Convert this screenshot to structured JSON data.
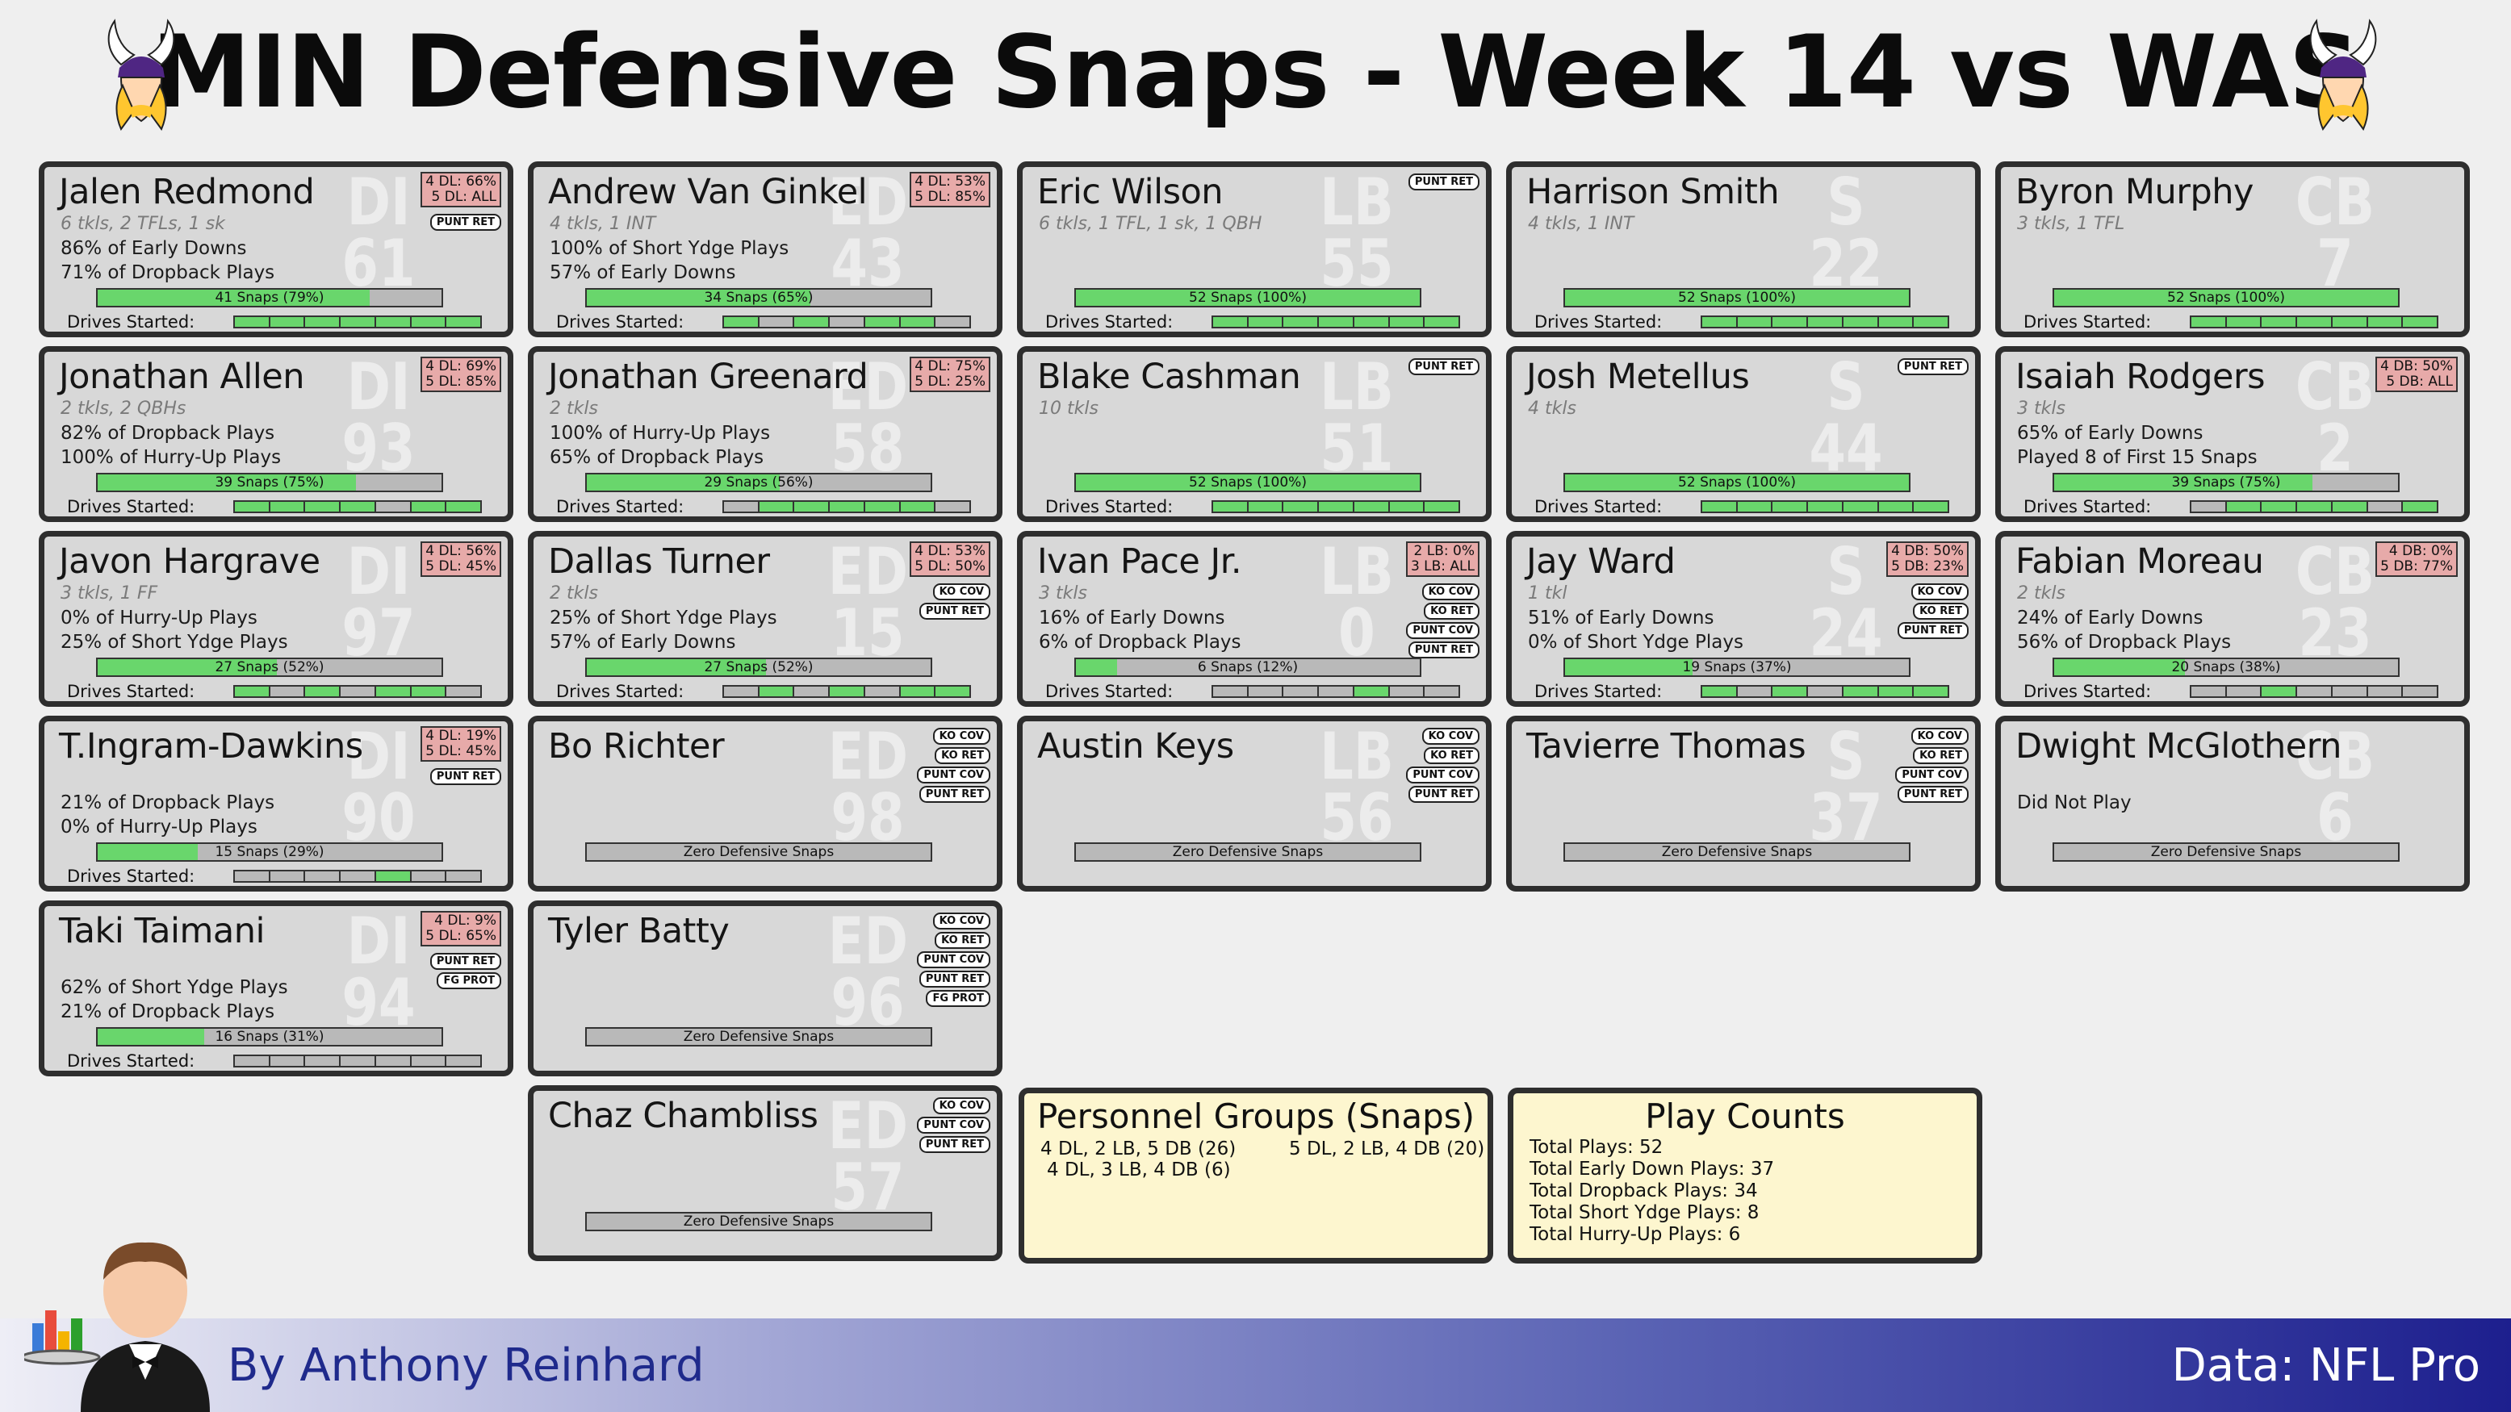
{
  "title": "MIN Defensive Snaps - Week 14 vs WAS",
  "colors": {
    "on": "#69d66c",
    "off": "#b9b9b9",
    "badge": "#e7aaa9",
    "card": "#d8d8d8",
    "info": "#fdf6cf",
    "purple": "#4f2683",
    "gold": "#ffc62f"
  },
  "icons": {
    "logo": "vikings-logo-icon",
    "butler": "butler-mascot-icon"
  },
  "players": [
    {
      "name": "Jalen Redmond",
      "sub": "6 tkls, 2 TFLs, 1 sk",
      "line1": "86% of Early Downs",
      "line2": "71% of Dropback Plays",
      "pos": "DI",
      "num": "61",
      "badge": "4 DL: 66%\n5 DL: ALL",
      "tags": [
        "PUNT RET"
      ],
      "snaps": "41 Snaps (79%)",
      "pct": 79,
      "drives_label": "Drives Started:",
      "drives": [
        1,
        1,
        1,
        1,
        1,
        1,
        1
      ]
    },
    {
      "name": "Andrew Van Ginkel",
      "sub": "4 tkls, 1 INT",
      "line1": "100% of Short Ydge Plays",
      "line2": "57% of Early Downs",
      "pos": "ED",
      "num": "43",
      "badge": "4 DL: 53%\n5 DL: 85%",
      "tags": [],
      "snaps": "34 Snaps (65%)",
      "pct": 65,
      "drives_label": "Drives Started:",
      "drives": [
        1,
        0,
        1,
        0,
        1,
        1,
        0
      ]
    },
    {
      "name": "Eric Wilson",
      "sub": "6 tkls, 1 TFL, 1 sk, 1 QBH",
      "line1": "",
      "line2": "",
      "pos": "LB",
      "num": "55",
      "badge": "",
      "tags": [
        "PUNT RET"
      ],
      "snaps": "52 Snaps (100%)",
      "pct": 100,
      "drives_label": "Drives Started:",
      "drives": [
        1,
        1,
        1,
        1,
        1,
        1,
        1
      ]
    },
    {
      "name": "Harrison Smith",
      "sub": "4 tkls, 1 INT",
      "line1": "",
      "line2": "",
      "pos": "S",
      "num": "22",
      "badge": "",
      "tags": [],
      "snaps": "52 Snaps (100%)",
      "pct": 100,
      "drives_label": "Drives Started:",
      "drives": [
        1,
        1,
        1,
        1,
        1,
        1,
        1
      ]
    },
    {
      "name": "Byron Murphy",
      "sub": "3 tkls, 1 TFL",
      "line1": "",
      "line2": "",
      "pos": "CB",
      "num": "7",
      "badge": "",
      "tags": [],
      "snaps": "52 Snaps (100%)",
      "pct": 100,
      "drives_label": "Drives Started:",
      "drives": [
        1,
        1,
        1,
        1,
        1,
        1,
        1
      ]
    },
    {
      "name": "Jonathan Allen",
      "sub": "2 tkls, 2 QBHs",
      "line1": "82% of Dropback Plays",
      "line2": "100% of Hurry-Up Plays",
      "pos": "DI",
      "num": "93",
      "badge": "4 DL: 69%\n5 DL: 85%",
      "tags": [],
      "snaps": "39 Snaps (75%)",
      "pct": 75,
      "drives_label": "Drives Started:",
      "drives": [
        1,
        1,
        1,
        1,
        0,
        1,
        1
      ]
    },
    {
      "name": "Jonathan Greenard",
      "sub": "2 tkls",
      "line1": "100% of Hurry-Up Plays",
      "line2": "65% of Dropback Plays",
      "pos": "ED",
      "num": "58",
      "badge": "4 DL: 75%\n5 DL: 25%",
      "tags": [],
      "snaps": "29 Snaps (56%)",
      "pct": 56,
      "drives_label": "Drives Started:",
      "drives": [
        0,
        1,
        1,
        1,
        1,
        1,
        0
      ]
    },
    {
      "name": "Blake Cashman",
      "sub": "10 tkls",
      "line1": "",
      "line2": "",
      "pos": "LB",
      "num": "51",
      "badge": "",
      "tags": [
        "PUNT RET"
      ],
      "snaps": "52 Snaps (100%)",
      "pct": 100,
      "drives_label": "Drives Started:",
      "drives": [
        1,
        1,
        1,
        1,
        1,
        1,
        1
      ]
    },
    {
      "name": "Josh Metellus",
      "sub": "4 tkls",
      "line1": "",
      "line2": "",
      "pos": "S",
      "num": "44",
      "badge": "",
      "tags": [
        "PUNT RET"
      ],
      "snaps": "52 Snaps (100%)",
      "pct": 100,
      "drives_label": "Drives Started:",
      "drives": [
        1,
        1,
        1,
        1,
        1,
        1,
        1
      ]
    },
    {
      "name": "Isaiah Rodgers",
      "sub": "3 tkls",
      "line1": "65% of Early Downs",
      "line2": "Played 8 of First 15 Snaps",
      "pos": "CB",
      "num": "2",
      "badge": "4 DB: 50%\n5 DB: ALL",
      "tags": [],
      "snaps": "39 Snaps (75%)",
      "pct": 75,
      "drives_label": "Drives Started:",
      "drives": [
        0,
        1,
        1,
        1,
        1,
        0,
        1
      ]
    },
    {
      "name": "Javon Hargrave",
      "sub": "3 tkls, 1 FF",
      "line1": "0% of Hurry-Up Plays",
      "line2": "25% of Short Ydge Plays",
      "pos": "DI",
      "num": "97",
      "badge": "4 DL: 56%\n5 DL: 45%",
      "tags": [],
      "snaps": "27 Snaps (52%)",
      "pct": 52,
      "drives_label": "Drives Started:",
      "drives": [
        1,
        0,
        1,
        0,
        1,
        1,
        0
      ]
    },
    {
      "name": "Dallas Turner",
      "sub": "2 tkls",
      "line1": "25% of Short Ydge Plays",
      "line2": "57% of Early Downs",
      "pos": "ED",
      "num": "15",
      "badge": "4 DL: 53%\n5 DL: 50%",
      "tags": [
        "KO COV",
        "PUNT RET"
      ],
      "snaps": "27 Snaps (52%)",
      "pct": 52,
      "drives_label": "Drives Started:",
      "drives": [
        0,
        1,
        0,
        1,
        0,
        1,
        1
      ]
    },
    {
      "name": "Ivan Pace Jr.",
      "sub": "3 tkls",
      "line1": "16% of Early Downs",
      "line2": "6% of Dropback Plays",
      "pos": "LB",
      "num": "0",
      "badge": "2 LB: 0%\n3 LB: ALL",
      "tags": [
        "KO COV",
        "KO RET",
        "PUNT COV",
        "PUNT RET"
      ],
      "snaps": "6 Snaps (12%)",
      "pct": 12,
      "drives_label": "Drives Started:",
      "drives": [
        0,
        0,
        0,
        0,
        1,
        0,
        0
      ]
    },
    {
      "name": "Jay Ward",
      "sub": "1 tkl",
      "line1": "51% of Early Downs",
      "line2": "0% of Short Ydge Plays",
      "pos": "S",
      "num": "24",
      "badge": "4 DB: 50%\n5 DB: 23%",
      "tags": [
        "KO COV",
        "KO RET",
        "PUNT RET"
      ],
      "snaps": "19 Snaps (37%)",
      "pct": 37,
      "drives_label": "Drives Started:",
      "drives": [
        1,
        0,
        1,
        0,
        1,
        1,
        1
      ]
    },
    {
      "name": "Fabian Moreau",
      "sub": "2 tkls",
      "line1": "24% of Early Downs",
      "line2": "56% of Dropback Plays",
      "pos": "CB",
      "num": "23",
      "badge": "4 DB: 0%\n5 DB: 77%",
      "tags": [],
      "snaps": "20 Snaps (38%)",
      "pct": 38,
      "drives_label": "Drives Started:",
      "drives": [
        0,
        0,
        1,
        0,
        0,
        0,
        0
      ]
    },
    {
      "name": "T.Ingram-Dawkins",
      "sub": "",
      "line1": "21% of Dropback Plays",
      "line2": "0% of Hurry-Up Plays",
      "pos": "DI",
      "num": "90",
      "badge": "4 DL: 19%\n5 DL: 45%",
      "tags": [
        "PUNT RET"
      ],
      "snaps": "15 Snaps (29%)",
      "pct": 29,
      "drives_label": "Drives Started:",
      "drives": [
        0,
        0,
        0,
        0,
        1,
        0,
        0
      ]
    },
    {
      "name": "Bo Richter",
      "sub": "",
      "line1": "",
      "line2": "",
      "pos": "ED",
      "num": "98",
      "badge": "",
      "tags": [
        "KO COV",
        "KO RET",
        "PUNT COV",
        "PUNT RET"
      ],
      "snaps": "Zero Defensive Snaps",
      "pct": 0,
      "drives_label": "",
      "drives": []
    },
    {
      "name": "Austin Keys",
      "sub": "",
      "line1": "",
      "line2": "",
      "pos": "LB",
      "num": "56",
      "badge": "",
      "tags": [
        "KO COV",
        "KO RET",
        "PUNT COV",
        "PUNT RET"
      ],
      "snaps": "Zero Defensive Snaps",
      "pct": 0,
      "drives_label": "",
      "drives": []
    },
    {
      "name": "Tavierre Thomas",
      "sub": "",
      "line1": "",
      "line2": "",
      "pos": "S",
      "num": "37",
      "badge": "",
      "tags": [
        "KO COV",
        "KO RET",
        "PUNT COV",
        "PUNT RET"
      ],
      "snaps": "Zero Defensive Snaps",
      "pct": 0,
      "drives_label": "",
      "drives": []
    },
    {
      "name": "Dwight McGlothern",
      "sub": "",
      "line1": "Did Not Play",
      "line2": "",
      "pos": "CB",
      "num": "6",
      "badge": "",
      "tags": [],
      "snaps": "Zero Defensive Snaps",
      "pct": 0,
      "drives_label": "",
      "drives": []
    },
    {
      "name": "Taki Taimani",
      "sub": "",
      "line1": "62% of Short Ydge Plays",
      "line2": "21% of Dropback Plays",
      "pos": "DI",
      "num": "94",
      "badge": "4 DL: 9%\n5 DL: 65%",
      "tags": [
        "PUNT RET",
        "FG PROT"
      ],
      "snaps": "16 Snaps (31%)",
      "pct": 31,
      "drives_label": "Drives Started:",
      "drives": [
        0,
        0,
        0,
        0,
        0,
        0,
        0
      ]
    },
    {
      "name": "Tyler Batty",
      "sub": "",
      "line1": "",
      "line2": "",
      "pos": "ED",
      "num": "96",
      "badge": "",
      "tags": [
        "KO COV",
        "KO RET",
        "PUNT COV",
        "PUNT RET",
        "FG PROT"
      ],
      "snaps": "Zero Defensive Snaps",
      "pct": 0,
      "drives_label": "",
      "drives": []
    },
    {
      "name": "Chaz Chambliss",
      "sub": "",
      "line1": "",
      "line2": "",
      "pos": "ED",
      "num": "57",
      "badge": "",
      "tags": [
        "KO COV",
        "PUNT COV",
        "PUNT RET"
      ],
      "snaps": "Zero Defensive Snaps",
      "pct": 0,
      "drives_label": "",
      "drives": []
    }
  ],
  "personnel": {
    "title": "Personnel Groups (Snaps)",
    "groups": [
      "4 DL, 2 LB, 5 DB (26)",
      "5 DL, 2 LB, 4 DB (20)",
      "4 DL, 3 LB, 4 DB (6)"
    ]
  },
  "playcounts": {
    "title": "Play Counts",
    "lines": [
      "Total Plays: 52",
      "Total Early Down Plays: 37",
      "Total Dropback Plays: 34",
      "Total Short Ydge Plays: 8",
      "Total Hurry-Up Plays: 6"
    ]
  },
  "footer": {
    "byline": "By Anthony Reinhard",
    "source": "Data: NFL Pro"
  }
}
